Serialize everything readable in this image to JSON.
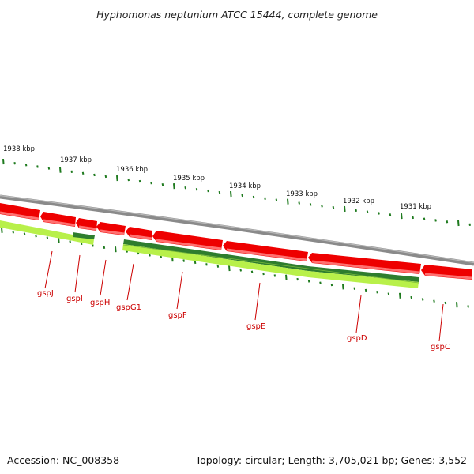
{
  "title": "Hyphomonas neptunium ATCC 15444, complete genome",
  "scale_labels": [
    "1938 kbp",
    "1937 kbp",
    "1936 kbp",
    "1935 kbp",
    "1934 kbp",
    "1933 kbp",
    "1932 kbp",
    "1931 kbp"
  ],
  "genes": [
    "gspJ",
    "gspI",
    "gspH",
    "gspG1",
    "gspF",
    "gspE",
    "gspD",
    "gspC"
  ],
  "footer": {
    "accession": "Accession: NC_008358",
    "summary": "Topology: circular; Length: 3,705,021 bp; Genes: 3,552"
  },
  "colors": {
    "backbone": "#8a8a8a",
    "gene_red": "#ee0000",
    "gene_red_light": "#ff7070",
    "band_dark_green": "#2e7d2e",
    "band_light_green": "#b8f04a",
    "tick_green": "#1e7a1e",
    "label_red": "#cc0000"
  }
}
